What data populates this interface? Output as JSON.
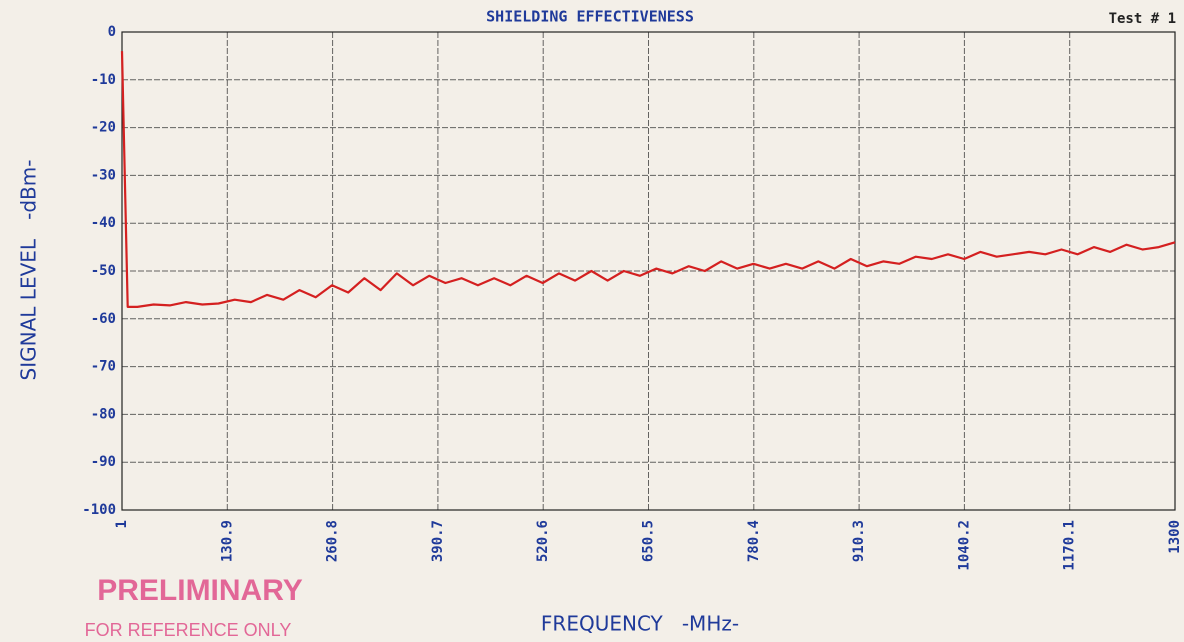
{
  "chart_data": {
    "type": "line",
    "title": "SHIELDING EFFECTIVENESS",
    "subtitle": "Test # 1",
    "y_label": "SIGNAL LEVEL   -dBm-",
    "x_label": "FREQUENCY   -MHz-",
    "annotations": [
      "PRELIMINARY",
      "FOR REFERENCE ONLY"
    ],
    "color": "#d42020",
    "grid": true,
    "xlim": [
      1,
      1300
    ],
    "ylim": [
      -100,
      0
    ],
    "xticks": [
      1,
      130.9,
      260.8,
      390.7,
      520.6,
      650.5,
      780.4,
      910.3,
      1040.2,
      1170.1,
      1300
    ],
    "yticks": [
      0,
      -10,
      -20,
      -30,
      -40,
      -50,
      -60,
      -70,
      -80,
      -90,
      -100
    ],
    "x": [
      1,
      8,
      20,
      40,
      60,
      80,
      100,
      120,
      140,
      160,
      180,
      200,
      220,
      240,
      260,
      280,
      300,
      320,
      340,
      360,
      380,
      400,
      420,
      440,
      460,
      480,
      500,
      520,
      540,
      560,
      580,
      600,
      620,
      640,
      660,
      680,
      700,
      720,
      740,
      760,
      780,
      800,
      820,
      840,
      860,
      880,
      900,
      920,
      940,
      960,
      980,
      1000,
      1020,
      1040,
      1060,
      1080,
      1100,
      1120,
      1140,
      1160,
      1180,
      1200,
      1220,
      1240,
      1260,
      1280,
      1300
    ],
    "values": [
      -4,
      -57.5,
      -57.5,
      -57,
      -57.2,
      -56.5,
      -57,
      -56.8,
      -56,
      -56.5,
      -55,
      -56,
      -54,
      -55.5,
      -53,
      -54.5,
      -51.5,
      -54,
      -50.5,
      -53,
      -51,
      -52.5,
      -51.5,
      -53,
      -51.5,
      -53,
      -51,
      -52.5,
      -50.5,
      -52,
      -50,
      -52,
      -50,
      -51,
      -49.5,
      -50.5,
      -49,
      -50,
      -48,
      -49.5,
      -48.5,
      -49.5,
      -48.5,
      -49.5,
      -48,
      -49.5,
      -47.5,
      -49,
      -48,
      -48.5,
      -47,
      -47.5,
      -46.5,
      -47.5,
      -46,
      -47,
      -46.5,
      -46,
      -46.5,
      -45.5,
      -46.5,
      -45,
      -46,
      -44.5,
      -45.5,
      -45,
      -44
    ]
  }
}
